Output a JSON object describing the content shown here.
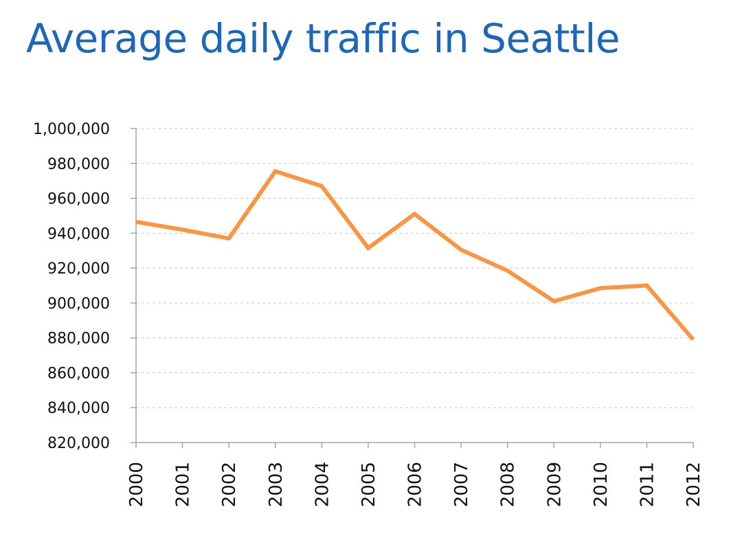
{
  "chart_data": {
    "type": "line",
    "title": "Average daily traffic in Seattle",
    "xlabel": "",
    "ylabel": "",
    "ylim": [
      820000,
      1000000
    ],
    "yticks": [
      820000,
      840000,
      860000,
      880000,
      900000,
      920000,
      940000,
      960000,
      980000,
      1000000
    ],
    "ytick_labels": [
      "820,000",
      "840,000",
      "860,000",
      "880,000",
      "900,000",
      "920,000",
      "940,000",
      "960,000",
      "980,000",
      "1,000,000"
    ],
    "categories": [
      "2000",
      "2001",
      "2002",
      "2003",
      "2004",
      "2005",
      "2006",
      "2007",
      "2008",
      "2009",
      "2010",
      "2011",
      "2012"
    ],
    "series": [
      {
        "name": "Average daily traffic",
        "values": [
          946500,
          942000,
          937000,
          975500,
          967000,
          931500,
          951000,
          930500,
          918500,
          901000,
          908500,
          910000,
          879000
        ]
      }
    ],
    "grid": true,
    "legend": "none",
    "line_color": "#f79646"
  }
}
